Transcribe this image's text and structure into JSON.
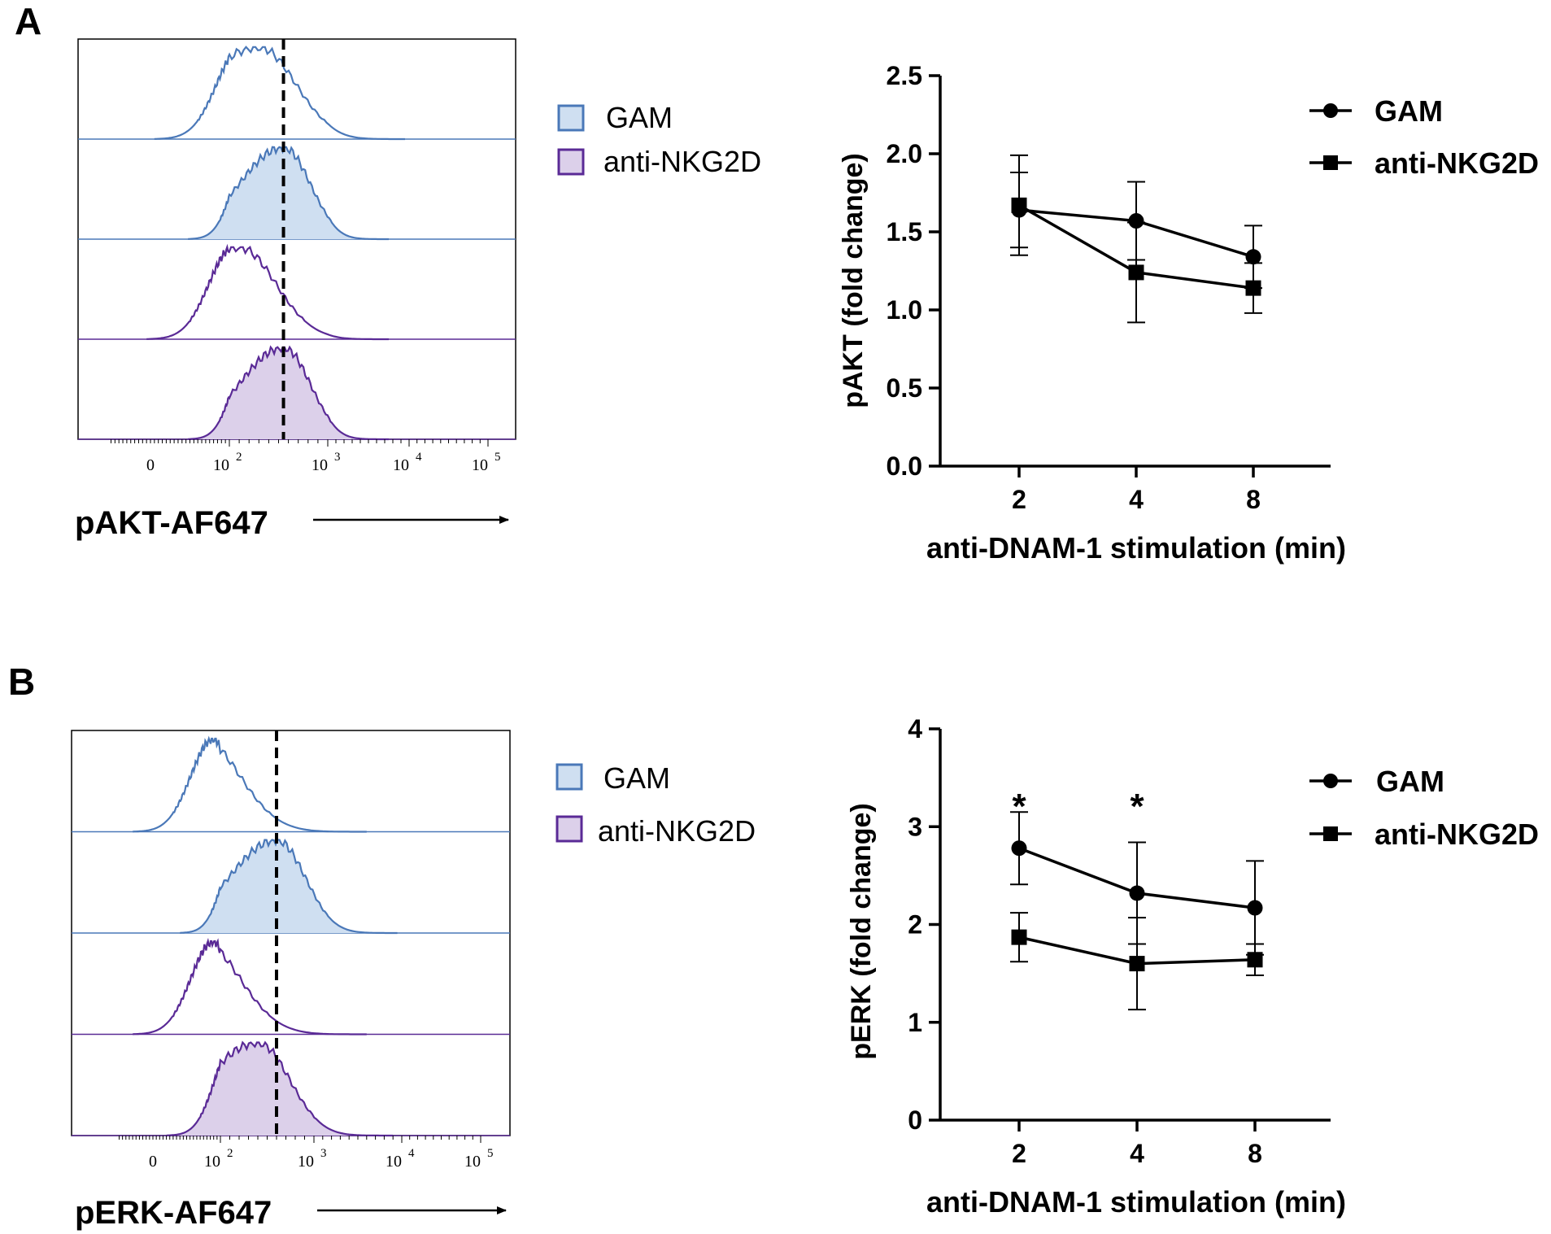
{
  "colors": {
    "gam_line": "#4a78b8",
    "gam_fill": "#cfdff1",
    "nkg2d_line": "#5a2a96",
    "nkg2d_fill": "#dcd0ea",
    "ink": "#000000"
  },
  "panels": [
    {
      "letter": "A",
      "histogram": {
        "xlabel": "pAKT-AF647",
        "ticks": [
          {
            "base": "0",
            "exp": ""
          },
          {
            "base": "10",
            "exp": "2"
          },
          {
            "base": "10",
            "exp": "3"
          },
          {
            "base": "10",
            "exp": "4"
          },
          {
            "base": "10",
            "exp": "5"
          }
        ],
        "legend": [
          {
            "label": "GAM",
            "swatch": "gam"
          },
          {
            "label": "anti-NKG2D",
            "swatch": "nkg2d"
          }
        ],
        "tracks": [
          {
            "condition": "GAM",
            "filled": false,
            "peak_log": 2.3,
            "width": 0.55
          },
          {
            "condition": "GAM",
            "filled": true,
            "peak_log": 2.55,
            "width": 0.4
          },
          {
            "condition": "anti-NKG2D",
            "filled": false,
            "peak_log": 2.1,
            "width": 0.55
          },
          {
            "condition": "anti-NKG2D",
            "filled": true,
            "peak_log": 2.55,
            "width": 0.4
          }
        ],
        "dashed_line_log": 2.55
      }
    },
    {
      "letter": "B",
      "histogram": {
        "xlabel": "pERK-AF647",
        "ticks": [
          {
            "base": "0",
            "exp": ""
          },
          {
            "base": "10",
            "exp": "2"
          },
          {
            "base": "10",
            "exp": "3"
          },
          {
            "base": "10",
            "exp": "4"
          },
          {
            "base": "10",
            "exp": "5"
          }
        ],
        "legend": [
          {
            "label": "GAM",
            "swatch": "gam"
          },
          {
            "label": "anti-NKG2D",
            "swatch": "nkg2d"
          }
        ],
        "tracks": [
          {
            "condition": "GAM",
            "filled": false,
            "peak_log": 1.8,
            "width": 0.6
          },
          {
            "condition": "GAM",
            "filled": true,
            "peak_log": 2.6,
            "width": 0.45
          },
          {
            "condition": "anti-NKG2D",
            "filled": false,
            "peak_log": 1.8,
            "width": 0.6
          },
          {
            "condition": "anti-NKG2D",
            "filled": true,
            "peak_log": 2.4,
            "width": 0.5
          }
        ],
        "dashed_line_log": 2.6
      }
    }
  ],
  "chart_data": [
    {
      "type": "line",
      "panel": "A",
      "ylabel": "pAKT (fold change)",
      "xlabel": "anti-DNAM-1 stimulation (min)",
      "categories": [
        "2",
        "4",
        "8"
      ],
      "ylim": [
        0,
        2.5
      ],
      "yticks": [
        "0.0",
        "0.5",
        "1.0",
        "1.5",
        "2.0",
        "2.5"
      ],
      "series": [
        {
          "name": "GAM",
          "marker": "circle",
          "values": [
            1.64,
            1.57,
            1.34
          ],
          "err": [
            0.24,
            0.25,
            0.2
          ]
        },
        {
          "name": "anti-NKG2D",
          "marker": "square",
          "values": [
            1.67,
            1.24,
            1.14
          ],
          "err": [
            0.32,
            0.32,
            0.16
          ]
        }
      ],
      "annotations": []
    },
    {
      "type": "line",
      "panel": "B",
      "ylabel": "pERK (fold change)",
      "xlabel": "anti-DNAM-1 stimulation (min)",
      "categories": [
        "2",
        "4",
        "8"
      ],
      "ylim": [
        0,
        4
      ],
      "yticks": [
        "0",
        "1",
        "2",
        "3",
        "4"
      ],
      "series": [
        {
          "name": "GAM",
          "marker": "circle",
          "values": [
            2.78,
            2.32,
            2.17
          ],
          "err": [
            0.37,
            0.52,
            0.48
          ]
        },
        {
          "name": "anti-NKG2D",
          "marker": "square",
          "values": [
            1.87,
            1.6,
            1.64
          ],
          "err": [
            0.25,
            0.47,
            0.16
          ]
        }
      ],
      "annotations": [
        {
          "category": "2",
          "text": "*"
        },
        {
          "category": "4",
          "text": "*"
        }
      ]
    }
  ]
}
